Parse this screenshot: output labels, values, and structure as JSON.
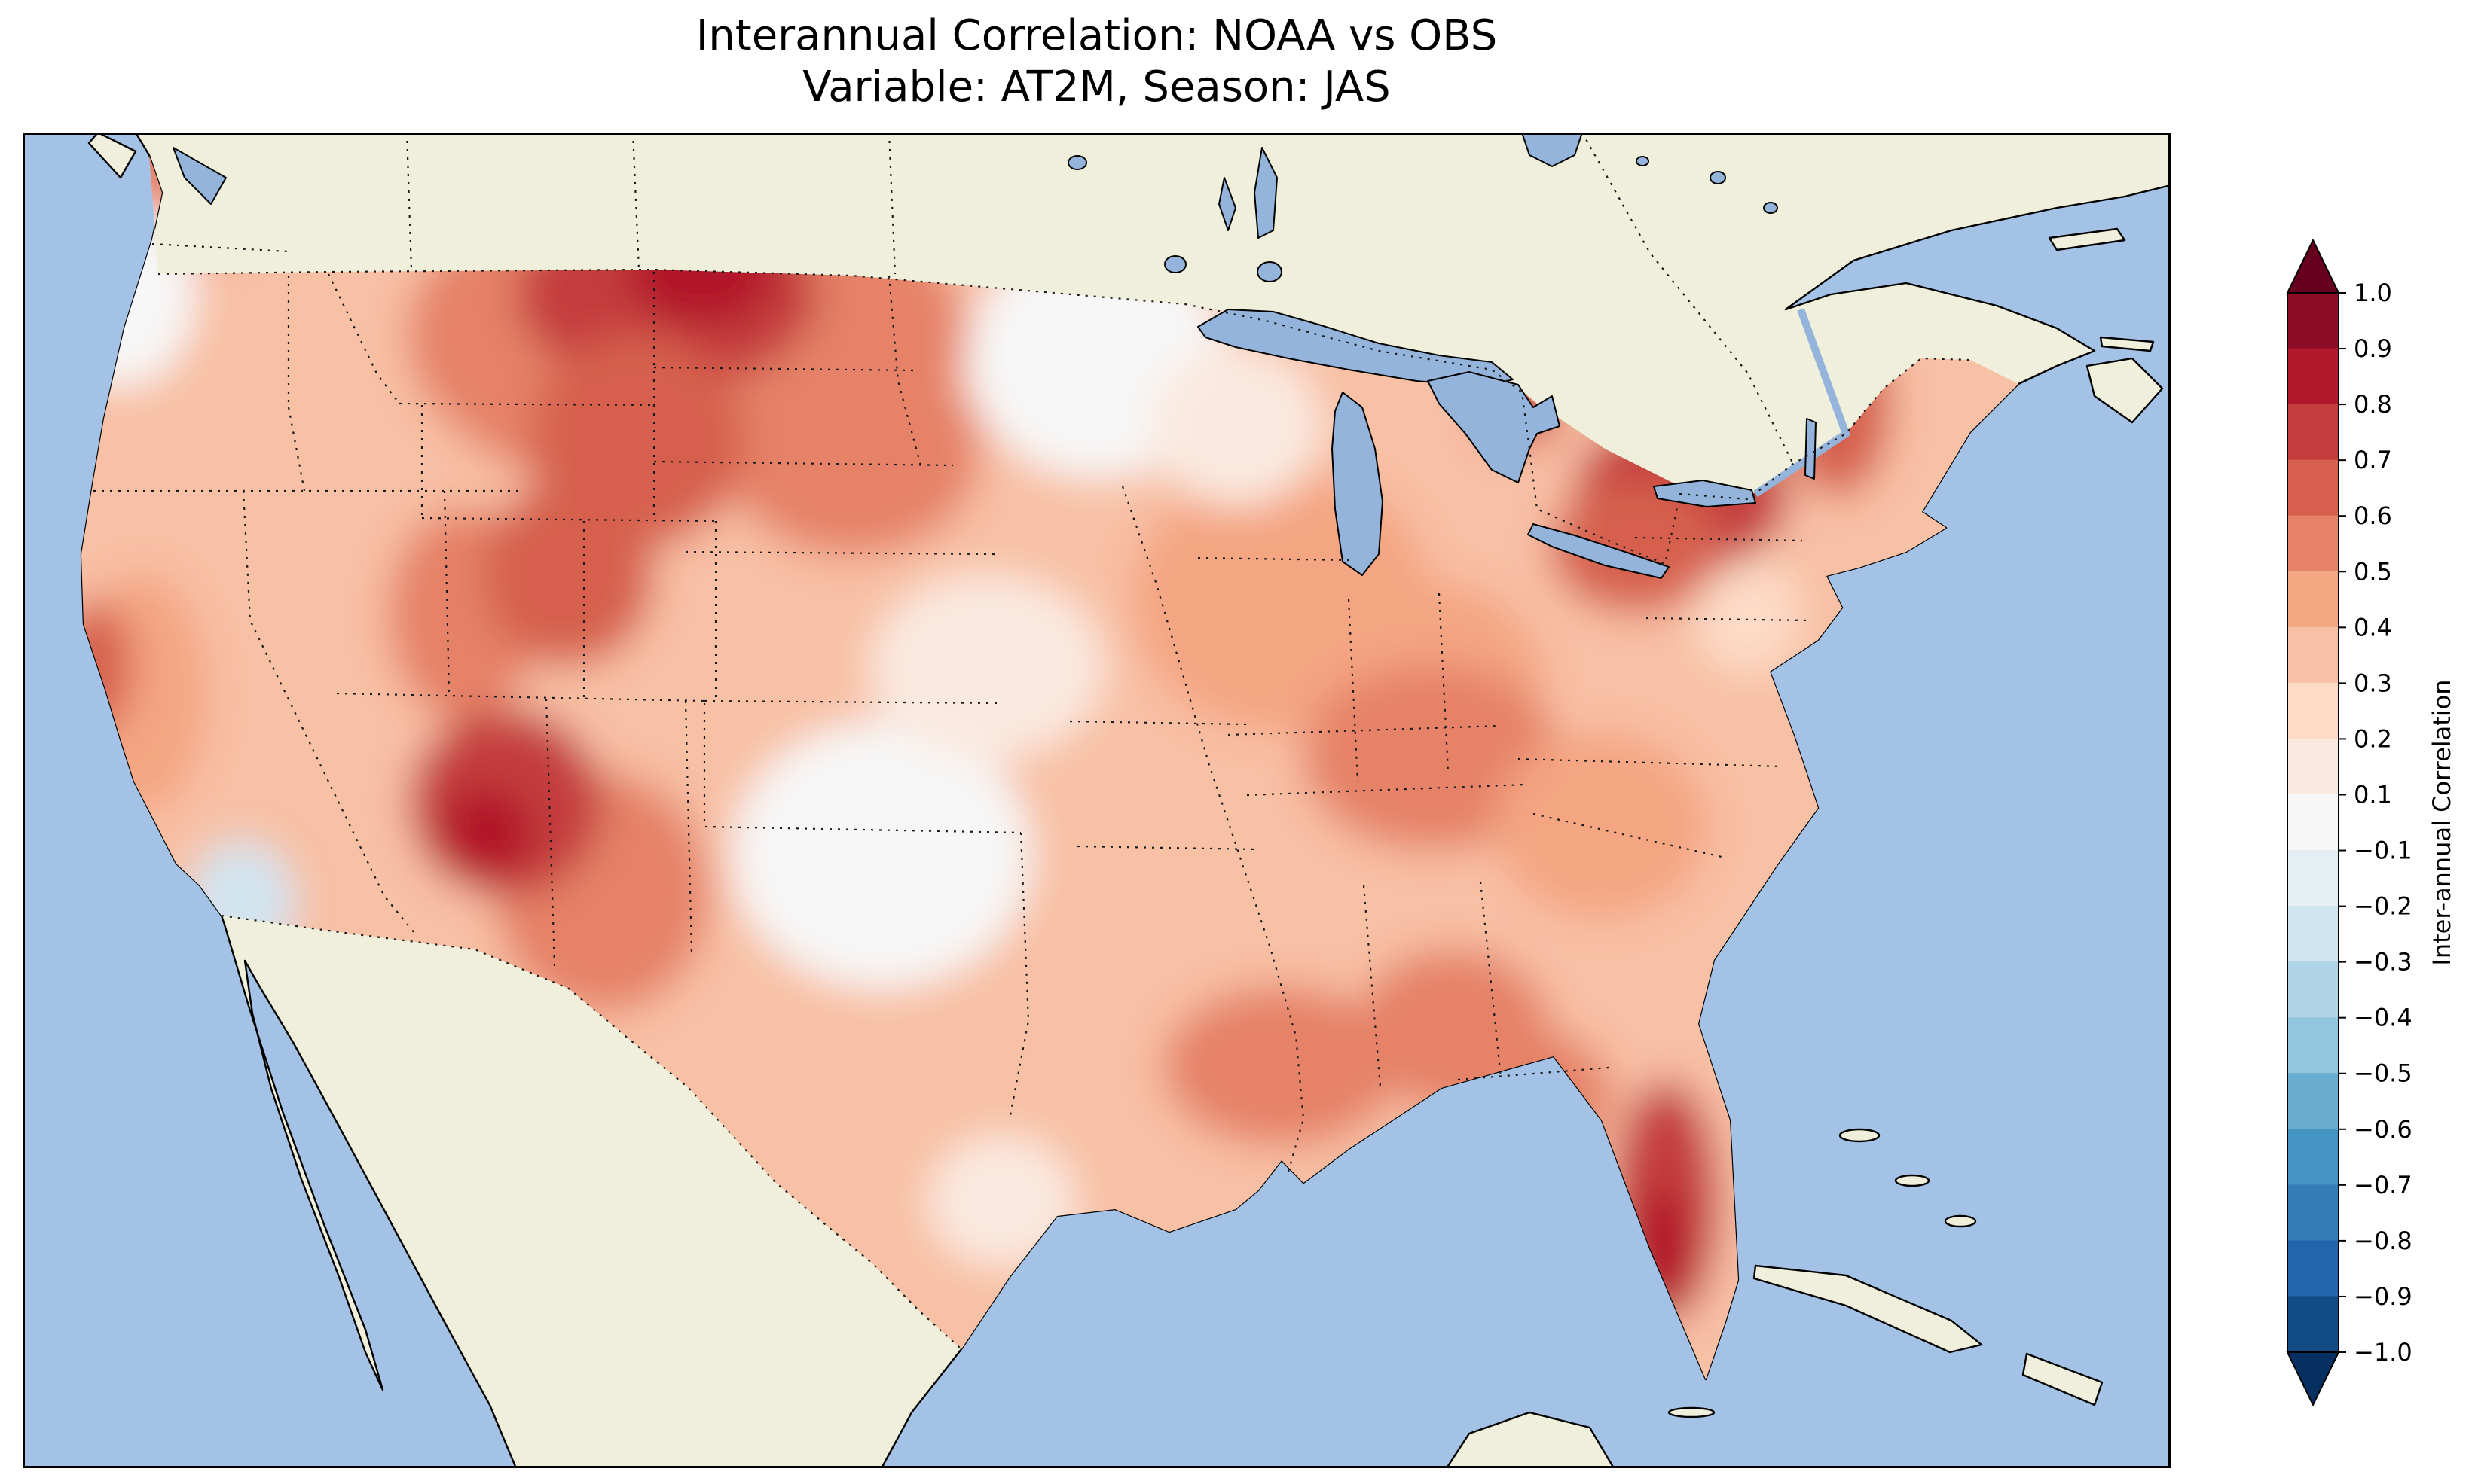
{
  "title": {
    "line1": "Interannual Correlation: NOAA vs OBS",
    "line2": "Variable: AT2M, Season: JAS"
  },
  "colorbar": {
    "label": "Inter-annual Correlation",
    "tick_labels": [
      "1.0",
      "0.9",
      "0.8",
      "0.7",
      "0.6",
      "0.5",
      "0.4",
      "0.3",
      "0.2",
      "0.1",
      "−0.1",
      "−0.2",
      "−0.3",
      "−0.4",
      "−0.5",
      "−0.6",
      "−0.7",
      "−0.8",
      "−0.9",
      "−1.0"
    ],
    "levels": [
      -1.0,
      -0.9,
      -0.8,
      -0.7,
      -0.6,
      -0.5,
      -0.4,
      -0.3,
      -0.2,
      -0.1,
      0.1,
      0.2,
      0.3,
      0.4,
      0.5,
      0.6,
      0.7,
      0.8,
      0.9,
      1.0
    ],
    "band_colors_bottom_to_top": [
      "#134b86",
      "#2166ac",
      "#327cb8",
      "#4393c3",
      "#6aacd0",
      "#92c5de",
      "#b1d5e7",
      "#d1e5f0",
      "#e4eef3",
      "#f7f7f7",
      "#fae9df",
      "#fddbc7",
      "#f8c0a4",
      "#f4a582",
      "#e58267",
      "#d6604d",
      "#c43c3c",
      "#b2182b",
      "#8c0c25"
    ],
    "extend_low_color": "#053061",
    "extend_high_color": "#67001f"
  },
  "map": {
    "ocean_color": "#a3c2e5",
    "lake_color": "#94b4dc",
    "land_color": "#efefdb",
    "boundary_color": "#000000"
  },
  "chart_data": {
    "type": "filled_contour_map",
    "title": "Interannual Correlation: NOAA vs OBS",
    "subtitle": "Variable: AT2M, Season: JAS",
    "comparison": [
      "NOAA",
      "OBS"
    ],
    "variable": "AT2M",
    "season": "JAS",
    "region_extent": "Contiguous United States",
    "colormap": "RdBu_r",
    "value_range": [
      -1.0,
      1.0
    ],
    "contour_levels": [
      -1.0,
      -0.9,
      -0.8,
      -0.7,
      -0.6,
      -0.5,
      -0.4,
      -0.3,
      -0.2,
      -0.1,
      0.1,
      0.2,
      0.3,
      0.4,
      0.5,
      0.6,
      0.7,
      0.8,
      0.9,
      1.0
    ],
    "colorbar_label": "Inter-annual Correlation",
    "base_field_value": 0.3,
    "field_regions": [
      {
        "name": "pacific-northwest-washington",
        "value": 0.55,
        "fx": 0.074,
        "fy": 0.034,
        "rx": 0.046,
        "ry": 0.062
      },
      {
        "name": "california-central",
        "value": 0.45,
        "fx": 0.056,
        "fy": 0.42,
        "rx": 0.03,
        "ry": 0.09
      },
      {
        "name": "great-basin-nevada",
        "value": 0.35,
        "fx": 0.16,
        "fy": 0.333,
        "rx": 0.05,
        "ry": 0.1
      },
      {
        "name": "northern-plains-broad",
        "value": 0.55,
        "fx": 0.309,
        "fy": 0.152,
        "rx": 0.13,
        "ry": 0.125
      },
      {
        "name": "nebraska-dakota-east",
        "value": 0.5,
        "fx": 0.386,
        "fy": 0.237,
        "rx": 0.06,
        "ry": 0.08
      },
      {
        "name": "new-mexico-west-texas",
        "value": 0.5,
        "fx": 0.27,
        "fy": 0.569,
        "rx": 0.05,
        "ry": 0.09
      },
      {
        "name": "midwest-moderate",
        "value": 0.4,
        "fx": 0.586,
        "fy": 0.35,
        "rx": 0.07,
        "ry": 0.1
      },
      {
        "name": "ohio-valley",
        "value": 0.45,
        "fx": 0.659,
        "fy": 0.417,
        "rx": 0.05,
        "ry": 0.08
      },
      {
        "name": "appalachia-tennessee",
        "value": 0.55,
        "fx": 0.656,
        "fy": 0.468,
        "rx": 0.06,
        "ry": 0.07
      },
      {
        "name": "southeast-carolinas",
        "value": 0.45,
        "fx": 0.735,
        "fy": 0.519,
        "rx": 0.05,
        "ry": 0.07
      },
      {
        "name": "gulf-coast-louisiana",
        "value": 0.55,
        "fx": 0.586,
        "fy": 0.699,
        "rx": 0.055,
        "ry": 0.06
      },
      {
        "name": "alabama-georgia",
        "value": 0.5,
        "fx": 0.666,
        "fy": 0.671,
        "rx": 0.045,
        "ry": 0.06
      },
      {
        "name": "florida-panhandle",
        "value": 0.55,
        "fx": 0.7,
        "fy": 0.72,
        "rx": 0.04,
        "ry": 0.05
      },
      {
        "name": "south-texas",
        "value": 0.35,
        "fx": 0.43,
        "fy": 0.75,
        "rx": 0.05,
        "ry": 0.08
      },
      {
        "name": "utah-medium",
        "value": 0.55,
        "fx": 0.205,
        "fy": 0.361,
        "rx": 0.035,
        "ry": 0.08
      },
      {
        "name": "oregon-coast-low",
        "value": 0.05,
        "fx": 0.046,
        "fy": 0.121,
        "rx": 0.035,
        "ry": 0.07
      },
      {
        "name": "texas-central-white",
        "value": 0.05,
        "fx": 0.4,
        "fy": 0.541,
        "rx": 0.07,
        "ry": 0.1
      },
      {
        "name": "kansas-white",
        "value": 0.1,
        "fx": 0.449,
        "fy": 0.4,
        "rx": 0.055,
        "ry": 0.07
      },
      {
        "name": "minnesota-white",
        "value": 0.05,
        "fx": 0.5,
        "fy": 0.169,
        "rx": 0.06,
        "ry": 0.09
      },
      {
        "name": "wisconsin-light",
        "value": 0.15,
        "fx": 0.565,
        "fy": 0.22,
        "rx": 0.04,
        "ry": 0.06
      },
      {
        "name": "texas-coast-light",
        "value": 0.15,
        "fx": 0.456,
        "fy": 0.8,
        "rx": 0.035,
        "ry": 0.05
      },
      {
        "name": "mid-atlantic-light",
        "value": 0.2,
        "fx": 0.803,
        "fy": 0.361,
        "rx": 0.025,
        "ry": 0.045
      },
      {
        "name": "socal-coastal-negative",
        "value": -0.25,
        "fx": 0.102,
        "fy": 0.575,
        "rx": 0.025,
        "ry": 0.045
      },
      {
        "name": "montana-wyoming-core",
        "value": 0.7,
        "fx": 0.3,
        "fy": 0.121,
        "rx": 0.07,
        "ry": 0.07
      },
      {
        "name": "montana-dark-spot",
        "value": 0.8,
        "fx": 0.316,
        "fy": 0.101,
        "rx": 0.035,
        "ry": 0.045
      },
      {
        "name": "wyoming-colorado-front",
        "value": 0.65,
        "fx": 0.286,
        "fy": 0.231,
        "rx": 0.05,
        "ry": 0.08
      },
      {
        "name": "colorado-rockies",
        "value": 0.6,
        "fx": 0.254,
        "fy": 0.33,
        "rx": 0.04,
        "ry": 0.07
      },
      {
        "name": "four-corners-dark",
        "value": 0.75,
        "fx": 0.225,
        "fy": 0.502,
        "rx": 0.045,
        "ry": 0.07
      },
      {
        "name": "arizona-core",
        "value": 0.8,
        "fx": 0.216,
        "fy": 0.524,
        "rx": 0.022,
        "ry": 0.035
      },
      {
        "name": "california-coast-core",
        "value": 0.65,
        "fx": 0.033,
        "fy": 0.4,
        "rx": 0.018,
        "ry": 0.05
      },
      {
        "name": "saginaw-red-spot",
        "value": 0.65,
        "fx": 0.698,
        "fy": 0.206,
        "rx": 0.02,
        "ry": 0.03
      },
      {
        "name": "northeast-newyork-core",
        "value": 0.7,
        "fx": 0.772,
        "fy": 0.271,
        "rx": 0.05,
        "ry": 0.06
      },
      {
        "name": "pennsylvania-dark",
        "value": 0.65,
        "fx": 0.751,
        "fy": 0.31,
        "rx": 0.04,
        "ry": 0.05
      },
      {
        "name": "new-england-vermont",
        "value": 0.6,
        "fx": 0.845,
        "fy": 0.203,
        "rx": 0.025,
        "ry": 0.07
      },
      {
        "name": "florida-peninsula",
        "value": 0.75,
        "fx": 0.765,
        "fy": 0.8,
        "rx": 0.025,
        "ry": 0.09
      },
      {
        "name": "florida-core",
        "value": 0.85,
        "fx": 0.762,
        "fy": 0.84,
        "rx": 0.015,
        "ry": 0.05
      }
    ]
  }
}
